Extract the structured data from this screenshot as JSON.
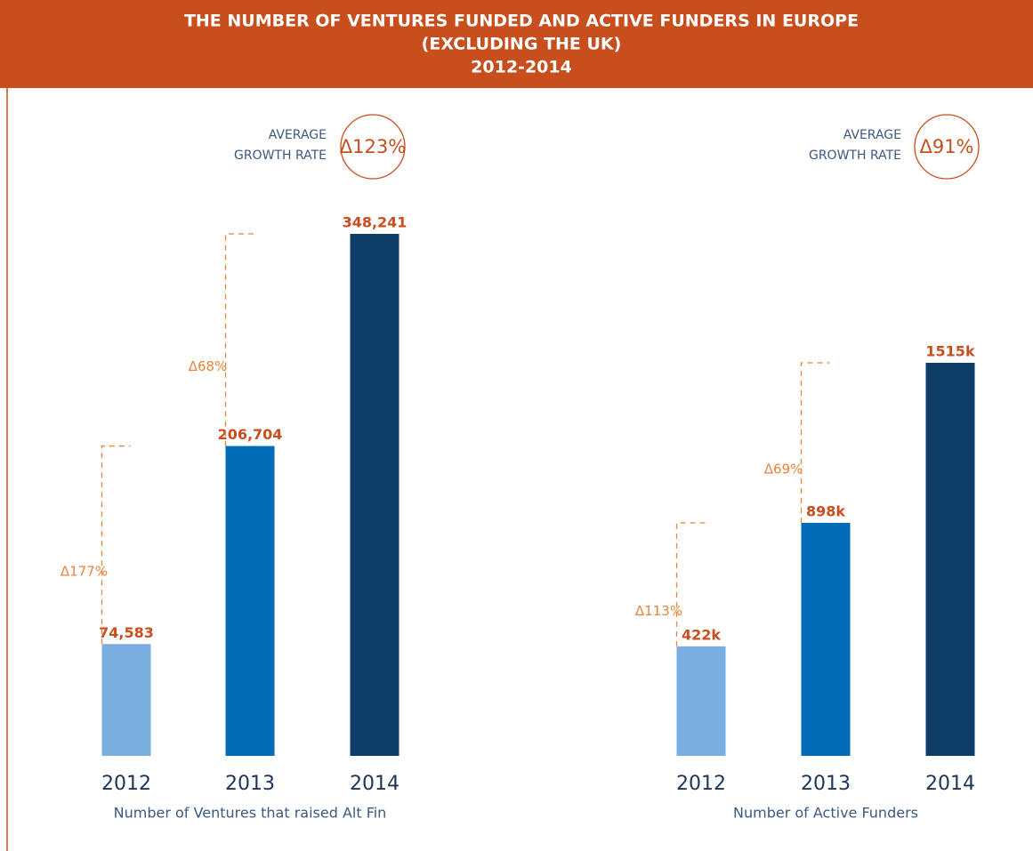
{
  "title": [
    "THE NUMBER OF VENTURES FUNDED AND ACTIVE FUNDERS IN EUROPE",
    "(EXCLUDING THE UK)",
    "2012-2014"
  ],
  "chart_data": [
    {
      "type": "bar",
      "x_label": "Number of Ventures that raised Alt Fin",
      "categories": [
        "2012",
        "2013",
        "2014"
      ],
      "values": [
        74583,
        206704,
        348241
      ],
      "value_labels": [
        "74,583",
        "206,704",
        "348,241"
      ],
      "colors": [
        "#7aaee0",
        "#006bb6",
        "#0d3d66"
      ],
      "growth_labels": [
        "Δ177%",
        "Δ68%"
      ],
      "average_label": [
        "AVERAGE",
        "GROWTH RATE"
      ],
      "average_value": "Δ123%"
    },
    {
      "type": "bar",
      "x_label": "Number of Active Funders",
      "categories": [
        "2012",
        "2013",
        "2014"
      ],
      "values": [
        422000,
        898000,
        1515000
      ],
      "value_labels": [
        "422k",
        "898k",
        "1515k"
      ],
      "colors": [
        "#7aaee0",
        "#006bb6",
        "#0d3d66"
      ],
      "growth_labels": [
        "Δ113%",
        "Δ69%"
      ],
      "average_label": [
        "AVERAGE",
        "GROWTH RATE"
      ],
      "average_value": "Δ91%"
    }
  ]
}
